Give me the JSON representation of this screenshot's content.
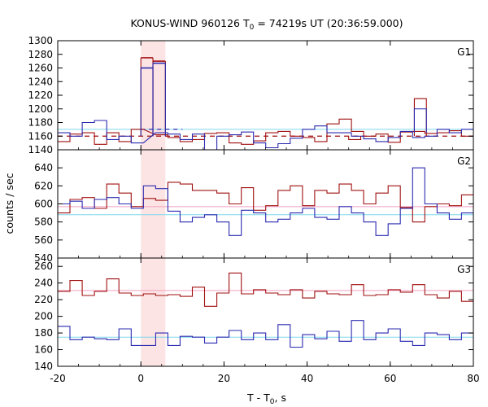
{
  "chart_data": {
    "type": "line",
    "title_main": "KONUS-WIND 960126 T",
    "title_sub": "0",
    "title_rest": " = 74219s UT (20:36:59.000)",
    "xlabel_main": "T - T",
    "xlabel_sub": "0",
    "xlabel_rest": ", s",
    "ylabel": "counts / sec",
    "xlim": [
      -20,
      80
    ],
    "xticks": [
      "-20",
      "0",
      "20",
      "40",
      "60",
      "80"
    ],
    "highlight": {
      "x0": 0.0,
      "x1": 5.9,
      "color": "#fde4e4"
    },
    "colors": {
      "red": "#a01010",
      "blue": "#2a2ab0",
      "cyan": "#7fd8ec",
      "pink": "#f0a0c0"
    },
    "panels": [
      {
        "label": "G1",
        "ylim": [
          1140,
          1300
        ],
        "yticks": [
          "1140",
          "1160",
          "1180",
          "1200",
          "1220",
          "1240",
          "1260",
          "1280",
          "1300"
        ],
        "bin_start": -20,
        "bin_width": 2.944,
        "series": [
          {
            "color": "red",
            "values": [
              1152,
              1163,
              1165,
              1148,
              1165,
              1152,
              1170,
              1140,
              1162,
              1158,
              1152,
              1155,
              1164,
              1165,
              1150,
              1148,
              1153,
              1165,
              1167,
              1160,
              1158,
              1152,
              1178,
              1185,
              1167,
              1160,
              1163,
              1151,
              1166,
              1167,
              1164,
              1165,
              1168,
              1160,
              1158
            ]
          },
          {
            "color": "blue",
            "values": [
              1165,
              1160,
              1180,
              1183,
              1155,
              1160,
              1150,
              1158,
              1165,
              1163,
              1155,
              1163,
              1130,
              1160,
              1162,
              1166,
              1150,
              1143,
              1149,
              1157,
              1170,
              1175,
              1165,
              1165,
              1160,
              1156,
              1152,
              1158,
              1167,
              1158,
              1160,
              1170,
              1165,
              1170,
              1168
            ]
          }
        ],
        "pulse": [
          {
            "color": "red",
            "x0": 0.0,
            "x1": 2.9,
            "y": 1275
          },
          {
            "color": "red",
            "x0": 2.9,
            "x1": 5.9,
            "y": 1270
          },
          {
            "color": "blue",
            "x0": 0.0,
            "x1": 2.9,
            "y": 1260
          },
          {
            "color": "blue",
            "x0": 2.9,
            "x1": 5.9,
            "y": 1267
          }
        ],
        "extra_red": [
          {
            "x0": 50.0,
            "x1": 52.9,
            "y": 1155
          },
          {
            "x0": 65.8,
            "x1": 68.7,
            "y": 1215
          }
        ],
        "extra_blue": [
          {
            "x0": 65.8,
            "x1": 68.7,
            "y": 1200
          }
        ],
        "bg_cyan": 1170,
        "bg_red": 1160,
        "bg_blue_dash": 1170
      },
      {
        "label": "G2",
        "ylim": [
          540,
          660
        ],
        "yticks": [
          "540",
          "560",
          "580",
          "600",
          "620",
          "640"
        ],
        "bin_start": -20,
        "bin_width": 2.944,
        "series": [
          {
            "color": "red",
            "values": [
              590,
              605,
              607,
              595,
              622,
              612,
              597,
              606,
              604,
              624,
              622,
              615,
              615,
              612,
              600,
              618,
              593,
              598,
              615,
              620,
              598,
              615,
              612,
              622,
              615,
              600,
              612,
              620,
              596,
              580,
              597,
              600,
              598,
              610,
              607
            ]
          },
          {
            "color": "blue",
            "values": [
              600,
              603,
              595,
              605,
              607,
              600,
              595,
              620,
              617,
              592,
              580,
              585,
              588,
              580,
              565,
              593,
              590,
              580,
              583,
              590,
              595,
              585,
              583,
              597,
              590,
              580,
              565,
              578,
              595,
              640,
              600,
              590,
              583,
              590,
              580
            ]
          }
        ],
        "bg_cyan": 588,
        "bg_pink": 597
      },
      {
        "label": "G3",
        "ylim": [
          140,
          270
        ],
        "yticks": [
          "140",
          "160",
          "180",
          "200",
          "220",
          "240",
          "260"
        ],
        "bin_start": -20,
        "bin_width": 2.944,
        "series": [
          {
            "color": "red",
            "values": [
              230,
              243,
              225,
              230,
              245,
              228,
              225,
              227,
              225,
              226,
              224,
              235,
              212,
              228,
              252,
              227,
              232,
              228,
              226,
              232,
              222,
              230,
              227,
              226,
              238,
              225,
              226,
              232,
              229,
              238,
              226,
              222,
              230,
              218,
              230
            ]
          },
          {
            "color": "blue",
            "values": [
              188,
              172,
              175,
              173,
              172,
              185,
              165,
              165,
              180,
              165,
              176,
              175,
              168,
              175,
              183,
              172,
              180,
              172,
              190,
              163,
              178,
              173,
              182,
              170,
              195,
              172,
              180,
              185,
              170,
              165,
              180,
              178,
              172,
              180,
              183
            ]
          }
        ],
        "bg_cyan": 175,
        "bg_pink": 231
      }
    ]
  }
}
